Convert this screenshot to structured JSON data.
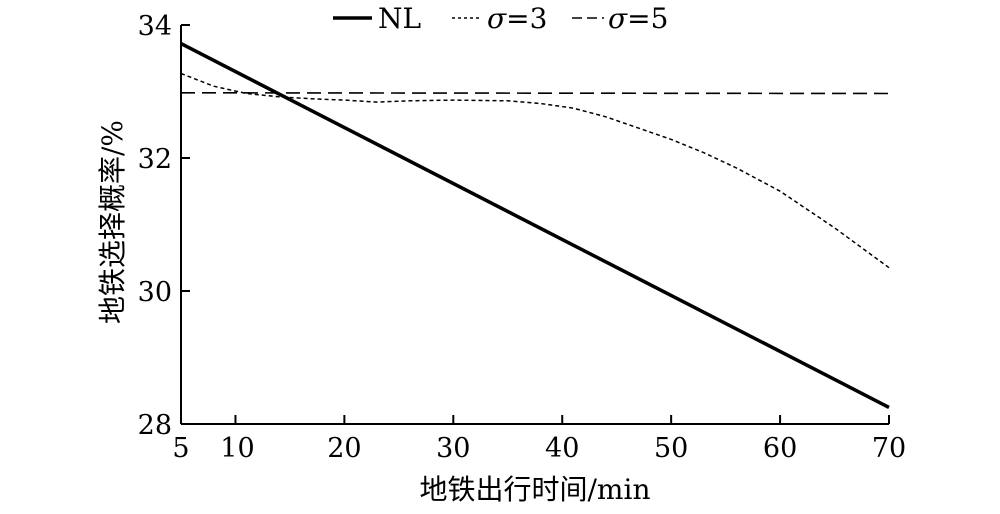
{
  "chart_data": {
    "type": "line",
    "title": "",
    "xlabel": "地铁出行时间/min",
    "ylabel": "地铁选择概率/%",
    "xlim": [
      5,
      70
    ],
    "ylim": [
      28,
      34
    ],
    "x_ticks": [
      5,
      10,
      20,
      30,
      40,
      50,
      60,
      70
    ],
    "y_ticks": [
      28,
      30,
      32,
      34
    ],
    "grid": false,
    "legend_position": "top-center",
    "series": [
      {
        "name": "NL",
        "line_style": "solid",
        "x": [
          5,
          70
        ],
        "y": [
          33.72,
          28.25
        ]
      },
      {
        "name": "σ=3",
        "name_symbol": "σ",
        "name_suffix": "=3",
        "line_style": "dotted",
        "x": [
          5,
          8,
          11,
          14,
          17,
          20,
          23,
          26,
          30,
          35,
          38,
          41,
          44,
          47,
          50,
          53,
          56,
          60,
          65,
          70
        ],
        "y": [
          33.27,
          33.08,
          32.97,
          32.92,
          32.89,
          32.87,
          32.84,
          32.86,
          32.87,
          32.86,
          32.82,
          32.75,
          32.62,
          32.45,
          32.28,
          32.08,
          31.85,
          31.5,
          30.95,
          30.35
        ]
      },
      {
        "name": "σ=5",
        "name_symbol": "σ",
        "name_suffix": "=5",
        "line_style": "dashed",
        "x": [
          5,
          70
        ],
        "y": [
          32.98,
          32.97
        ]
      }
    ]
  }
}
